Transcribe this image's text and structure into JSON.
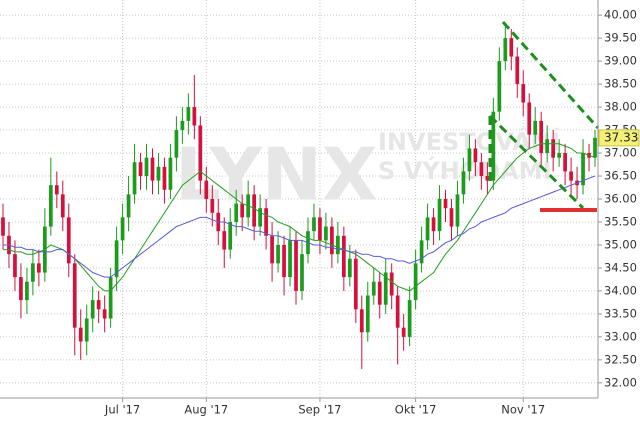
{
  "chart_data": {
    "type": "candlestick",
    "watermark": [
      "LYNX",
      "INVESTOVÁNÍ",
      "S VÝHODAMI"
    ],
    "last_label": "37.33",
    "up_color": "#1c9b1c",
    "down_color": "#d4103c",
    "grid": true,
    "categories": [
      null,
      null,
      null,
      null,
      null,
      null,
      null,
      null,
      null,
      null,
      null,
      null,
      null,
      null,
      null,
      null,
      null,
      null,
      null,
      null,
      null,
      null,
      null,
      null,
      null,
      null,
      null,
      null,
      null,
      null,
      null,
      null,
      null,
      null,
      null,
      null,
      null,
      null,
      null,
      null,
      null,
      null,
      null,
      null,
      null,
      null,
      null,
      null,
      null,
      null,
      null,
      null,
      null,
      null,
      null,
      null,
      null,
      null,
      null,
      null,
      null,
      null,
      null,
      null,
      null,
      null,
      null,
      null,
      null,
      null,
      null,
      null,
      null,
      null,
      null,
      null,
      null,
      null,
      null,
      null,
      null,
      null,
      null,
      null,
      null,
      null,
      null,
      null,
      null,
      null,
      null,
      null,
      null,
      null,
      null,
      null,
      null,
      null,
      null,
      null
    ],
    "open": [
      35.6,
      35.2,
      34.8,
      34.3,
      33.8,
      34.2,
      34.6,
      34.4,
      35.4,
      36.3,
      36.1,
      35.6,
      34.6,
      33.2,
      32.9,
      33.4,
      33.8,
      33.6,
      33.4,
      34.3,
      35.1,
      35.6,
      36.1,
      36.8,
      36.5,
      36.9,
      36.4,
      36.7,
      36.2,
      36.9,
      37.5,
      37.7,
      38.0,
      37.6,
      36.4,
      36.0,
      35.7,
      35.3,
      34.9,
      35.5,
      35.9,
      35.6,
      36.1,
      35.4,
      35.8,
      35.2,
      34.6,
      35.0,
      34.3,
      35.1,
      34.0,
      34.8,
      35.3,
      35.6,
      35.1,
      35.4,
      34.8,
      35.2,
      34.3,
      34.7,
      33.6,
      33.1,
      33.9,
      34.2,
      33.7,
      34.4,
      33.9,
      33.2,
      33.0,
      33.8,
      34.6,
      35.1,
      35.6,
      35.3,
      36.0,
      35.8,
      35.4,
      36.1,
      36.6,
      37.1,
      36.8,
      36.5,
      36.4,
      37.9,
      39.0,
      39.5,
      39.1,
      38.5,
      38.1,
      37.4,
      37.7,
      37.0,
      37.3,
      36.9,
      37.0,
      36.6,
      36.4,
      36.3,
      37.0,
      36.9
    ],
    "high": [
      35.9,
      35.5,
      35.1,
      34.6,
      34.5,
      34.9,
      34.9,
      35.8,
      36.9,
      36.6,
      36.4,
      35.9,
      34.8,
      33.6,
      33.7,
      34.1,
      34.0,
      33.9,
      34.5,
      35.4,
      35.9,
      36.5,
      37.2,
      37.0,
      37.2,
      37.1,
      37.0,
      36.9,
      37.2,
      37.8,
      38.0,
      38.3,
      38.7,
      37.8,
      36.7,
      36.3,
      36.0,
      35.6,
      35.8,
      36.2,
      36.1,
      36.4,
      36.3,
      36.1,
      36.0,
      35.5,
      35.3,
      35.2,
      35.4,
      35.3,
      35.1,
      35.6,
      35.9,
      35.8,
      35.7,
      35.6,
      35.5,
      35.4,
      35.0,
      34.9,
      33.9,
      34.2,
      34.5,
      34.4,
      34.7,
      34.6,
      34.1,
      33.5,
      34.1,
      34.9,
      35.4,
      35.9,
      35.8,
      36.3,
      36.2,
      36.0,
      36.4,
      36.9,
      37.4,
      37.3,
      37.0,
      36.8,
      38.2,
      39.3,
      39.8,
      39.7,
      39.3,
      38.8,
      38.3,
      38.0,
      37.9,
      37.6,
      37.5,
      37.3,
      37.2,
      36.9,
      36.7,
      37.3,
      37.2,
      37.5
    ],
    "low": [
      34.9,
      34.5,
      34.0,
      33.4,
      33.5,
      33.9,
      34.1,
      34.2,
      35.2,
      35.8,
      35.3,
      34.3,
      32.6,
      32.5,
      32.6,
      33.1,
      33.3,
      33.1,
      33.2,
      34.0,
      34.8,
      35.3,
      35.9,
      36.2,
      36.2,
      36.1,
      36.1,
      35.9,
      36.0,
      36.6,
      37.2,
      37.4,
      37.3,
      36.1,
      35.7,
      35.4,
      35.0,
      34.5,
      34.7,
      35.2,
      35.3,
      35.4,
      35.1,
      35.2,
      34.9,
      34.2,
      34.4,
      33.9,
      34.1,
      33.7,
      33.8,
      34.6,
      35.1,
      34.8,
      34.9,
      34.5,
      34.6,
      34.0,
      34.1,
      33.3,
      32.3,
      32.9,
      33.7,
      33.4,
      33.5,
      33.6,
      32.4,
      32.7,
      32.8,
      33.6,
      34.4,
      34.9,
      35.0,
      35.1,
      35.5,
      35.1,
      35.2,
      35.9,
      36.4,
      36.5,
      36.2,
      36.1,
      36.2,
      37.7,
      38.8,
      38.8,
      38.2,
      37.8,
      37.1,
      37.2,
      36.7,
      36.8,
      36.6,
      36.7,
      36.3,
      36.1,
      36.0,
      36.1,
      36.6,
      36.7
    ],
    "close": [
      35.2,
      34.8,
      34.3,
      33.8,
      34.2,
      34.6,
      34.4,
      35.4,
      36.3,
      36.1,
      35.6,
      34.6,
      33.2,
      32.9,
      33.4,
      33.8,
      33.6,
      33.4,
      34.3,
      35.1,
      35.6,
      36.1,
      36.8,
      36.5,
      36.9,
      36.4,
      36.7,
      36.2,
      36.9,
      37.5,
      37.7,
      38.0,
      37.6,
      36.4,
      36.0,
      35.7,
      35.3,
      34.9,
      35.5,
      35.9,
      35.6,
      36.1,
      35.4,
      35.8,
      35.2,
      34.6,
      35.0,
      34.3,
      35.1,
      34.0,
      34.8,
      35.3,
      35.6,
      35.1,
      35.4,
      34.8,
      35.2,
      34.3,
      34.7,
      33.6,
      33.1,
      33.9,
      34.2,
      33.7,
      34.4,
      33.9,
      33.2,
      33.0,
      33.8,
      34.6,
      35.1,
      35.6,
      35.3,
      36.0,
      35.8,
      35.4,
      36.1,
      36.6,
      37.1,
      36.8,
      36.5,
      36.4,
      37.9,
      39.0,
      39.5,
      39.1,
      38.5,
      38.1,
      37.4,
      37.7,
      37.0,
      37.3,
      36.9,
      37.0,
      36.6,
      36.4,
      36.3,
      37.0,
      36.9,
      37.33
    ],
    "lines": [
      {
        "color": "#22a022",
        "values": [
          34.9,
          34.9,
          34.85,
          34.85,
          34.8,
          34.8,
          34.85,
          34.9,
          35.0,
          34.95,
          34.9,
          34.8,
          34.7,
          34.55,
          34.4,
          34.25,
          34.1,
          34.0,
          34.0,
          34.15,
          34.3,
          34.5,
          34.7,
          34.9,
          35.1,
          35.3,
          35.5,
          35.7,
          35.9,
          36.1,
          36.3,
          36.4,
          36.5,
          36.6,
          36.5,
          36.4,
          36.3,
          36.2,
          36.1,
          36.0,
          35.9,
          35.85,
          35.8,
          35.7,
          35.65,
          35.6,
          35.5,
          35.45,
          35.4,
          35.3,
          35.2,
          35.15,
          35.1,
          35.1,
          35.05,
          35.0,
          34.95,
          34.9,
          34.85,
          34.8,
          34.7,
          34.6,
          34.5,
          34.4,
          34.3,
          34.2,
          34.1,
          34.05,
          34.0,
          34.1,
          34.2,
          34.3,
          34.4,
          34.6,
          34.8,
          34.95,
          35.1,
          35.3,
          35.5,
          35.7,
          35.9,
          36.1,
          36.3,
          36.45,
          36.6,
          36.75,
          36.9,
          37.0,
          37.1,
          37.15,
          37.2,
          37.2,
          37.2,
          37.2,
          37.15,
          37.1,
          37.0,
          37.0,
          36.95,
          36.9
        ]
      },
      {
        "color": "#5a5ad8",
        "values": [
          35.0,
          35.0,
          34.95,
          34.95,
          34.9,
          34.9,
          34.85,
          34.85,
          34.85,
          34.9,
          34.9,
          34.8,
          34.7,
          34.6,
          34.5,
          34.4,
          34.35,
          34.3,
          34.3,
          34.4,
          34.5,
          34.6,
          34.7,
          34.8,
          34.9,
          35.0,
          35.1,
          35.2,
          35.3,
          35.4,
          35.45,
          35.5,
          35.55,
          35.6,
          35.6,
          35.55,
          35.5,
          35.5,
          35.45,
          35.4,
          35.4,
          35.35,
          35.3,
          35.3,
          35.25,
          35.2,
          35.2,
          35.15,
          35.1,
          35.1,
          35.1,
          35.05,
          35.0,
          35.0,
          34.95,
          34.95,
          34.9,
          34.9,
          34.85,
          34.85,
          34.8,
          34.8,
          34.75,
          34.75,
          34.7,
          34.7,
          34.65,
          34.65,
          34.6,
          34.65,
          34.7,
          34.8,
          34.85,
          34.95,
          35.05,
          35.1,
          35.2,
          35.25,
          35.35,
          35.4,
          35.5,
          35.55,
          35.6,
          35.65,
          35.7,
          35.8,
          35.85,
          35.9,
          35.95,
          36.0,
          36.05,
          36.1,
          36.15,
          36.2,
          36.25,
          36.3,
          36.35,
          36.4,
          36.45,
          36.5
        ]
      }
    ],
    "xlim": [
      -0.5,
      99.5
    ],
    "xticks": [
      {
        "value": 20,
        "label": "Jul '17"
      },
      {
        "value": 34,
        "label": "Aug '17"
      },
      {
        "value": 53,
        "label": "Sep '17"
      },
      {
        "value": 69,
        "label": "Okt '17"
      },
      {
        "value": 87,
        "label": "Nov '17"
      }
    ],
    "ylim": [
      31.67,
      40.33
    ],
    "yticks": [
      {
        "value": 32,
        "label": "32.00"
      },
      {
        "value": 32.5,
        "label": "32.50"
      },
      {
        "value": 33,
        "label": "33.00"
      },
      {
        "value": 33.5,
        "label": "33.50"
      },
      {
        "value": 34,
        "label": "34.00"
      },
      {
        "value": 34.5,
        "label": "34.50"
      },
      {
        "value": 35,
        "label": "35.00"
      },
      {
        "value": 35.5,
        "label": "35.50"
      },
      {
        "value": 36,
        "label": "36.00"
      },
      {
        "value": 36.5,
        "label": "36.50"
      },
      {
        "value": 37,
        "label": "37.00"
      },
      {
        "value": 37.5,
        "label": "37.50"
      },
      {
        "value": 38,
        "label": "38.00"
      },
      {
        "value": 38.5,
        "label": "38.50"
      },
      {
        "value": 39,
        "label": "39.00"
      },
      {
        "value": 39.5,
        "label": "39.50"
      },
      {
        "value": 40,
        "label": "40.00"
      }
    ]
  }
}
